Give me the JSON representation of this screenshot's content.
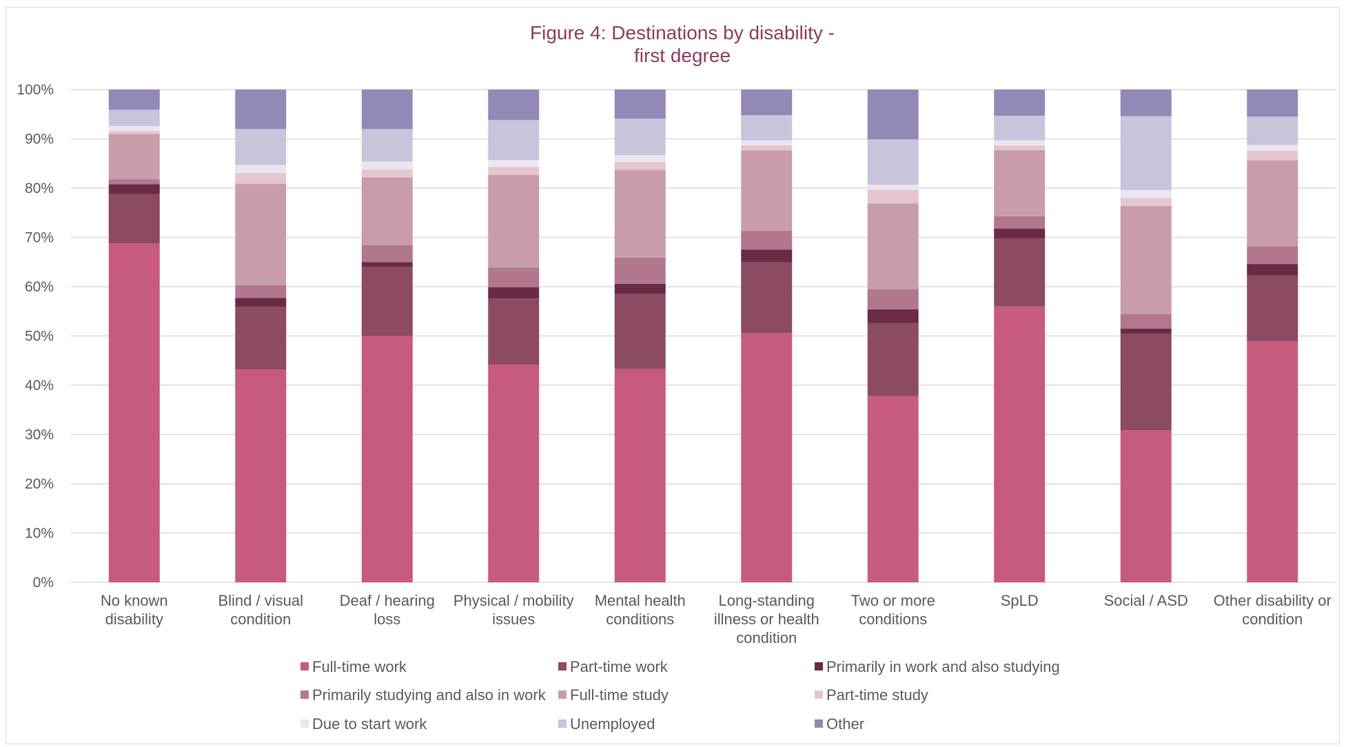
{
  "chart_data": {
    "type": "bar",
    "stacked": true,
    "percent_stacked": true,
    "title": "Figure 4: Destinations by disability - first degree",
    "title_lines": [
      "Figure 4: Destinations by disability -",
      "first degree"
    ],
    "xlabel": "",
    "ylabel": "",
    "ylim": [
      0,
      100
    ],
    "yticks": [
      "0%",
      "10%",
      "20%",
      "30%",
      "40%",
      "50%",
      "60%",
      "70%",
      "80%",
      "90%",
      "100%"
    ],
    "grid": true,
    "legend_position": "bottom",
    "categories": [
      "No known disability",
      "Blind / visual condition",
      "Deaf / hearing loss",
      "Physical / mobility issues",
      "Mental health conditions",
      "Long-standing illness or health condition",
      "Two or more conditions",
      "SpLD",
      "Social / ASD",
      "Other disability or condition"
    ],
    "category_label_lines": [
      [
        "No known",
        "disability"
      ],
      [
        "Blind / visual",
        "condition"
      ],
      [
        "Deaf / hearing",
        "loss"
      ],
      [
        "Physical / mobility",
        "issues"
      ],
      [
        "Mental health",
        "conditions"
      ],
      [
        "Long-standing",
        "illness or health",
        "condition"
      ],
      [
        "Two or more",
        "conditions"
      ],
      [
        "SpLD"
      ],
      [
        "Social / ASD"
      ],
      [
        "Other disability or",
        "condition"
      ]
    ],
    "series": [
      {
        "name": "Full-time work",
        "color": "#c75b7d",
        "values": [
          68.8,
          43.2,
          50.0,
          44.2,
          43.3,
          50.5,
          37.8,
          56.0,
          30.9,
          48.9
        ]
      },
      {
        "name": "Part-time work",
        "color": "#8c4a63",
        "values": [
          10.0,
          12.7,
          14.0,
          13.4,
          15.3,
          14.3,
          14.8,
          13.8,
          19.6,
          13.4
        ]
      },
      {
        "name": "Primarily in work and also studying",
        "color": "#6b2a45",
        "values": [
          2.0,
          1.8,
          1.0,
          2.3,
          2.0,
          2.6,
          2.8,
          2.0,
          1.0,
          2.3
        ]
      },
      {
        "name": "Primarily studying and also in work",
        "color": "#b0778e",
        "values": [
          1.0,
          2.6,
          3.4,
          4.0,
          5.3,
          3.8,
          4.1,
          2.5,
          2.9,
          3.6
        ]
      },
      {
        "name": "Full-time study",
        "color": "#c99cab",
        "values": [
          9.2,
          20.6,
          13.8,
          18.8,
          17.8,
          16.3,
          17.4,
          13.4,
          22.0,
          17.4
        ]
      },
      {
        "name": "Part-time study",
        "color": "#e5c6cf",
        "values": [
          0.6,
          2.2,
          1.6,
          1.6,
          1.6,
          1.0,
          2.8,
          1.0,
          1.6,
          2.0
        ]
      },
      {
        "name": "Due to start work",
        "color": "#e9e6f0",
        "values": [
          1.0,
          1.6,
          1.6,
          1.4,
          1.4,
          1.0,
          1.0,
          1.0,
          1.6,
          1.2
        ]
      },
      {
        "name": "Unemployed",
        "color": "#c9c4dc",
        "values": [
          3.3,
          7.3,
          6.6,
          8.1,
          7.4,
          5.1,
          9.2,
          5.0,
          15.0,
          5.7
        ]
      },
      {
        "name": "Other",
        "color": "#9488b6",
        "values": [
          4.1,
          8.0,
          8.0,
          6.2,
          5.9,
          5.2,
          10.1,
          5.3,
          5.4,
          5.5
        ]
      }
    ]
  }
}
